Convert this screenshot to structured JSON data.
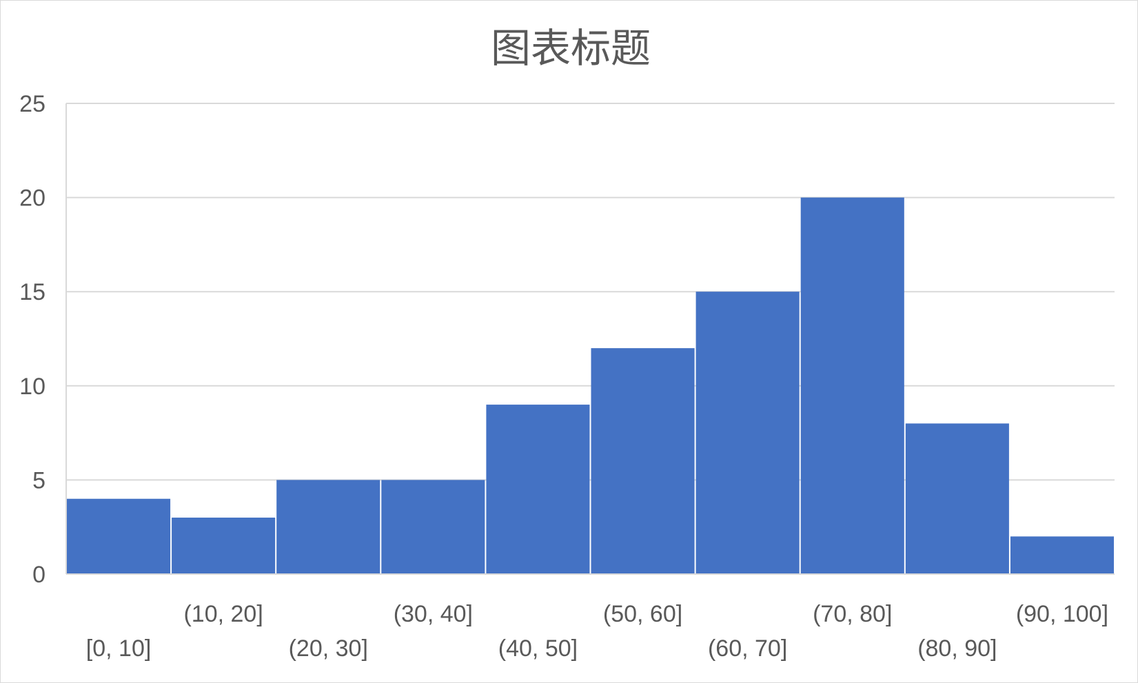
{
  "chart_data": {
    "type": "bar",
    "title": "图表标题",
    "categories": [
      "[0, 10]",
      "(10, 20]",
      "(20, 30]",
      "(30, 40]",
      "(40, 50]",
      "(50, 60]",
      "(60, 70]",
      "(70, 80]",
      "(80, 90]",
      "(90, 100]"
    ],
    "values": [
      4,
      3,
      5,
      5,
      9,
      12,
      15,
      20,
      8,
      2
    ],
    "ylim": [
      0,
      25
    ],
    "yticks": [
      "0",
      "5",
      "10",
      "15",
      "20",
      "25"
    ],
    "grid": true,
    "bar_color": "#4472C4",
    "grid_color": "#D9D9D9",
    "text_color": "#595959"
  }
}
